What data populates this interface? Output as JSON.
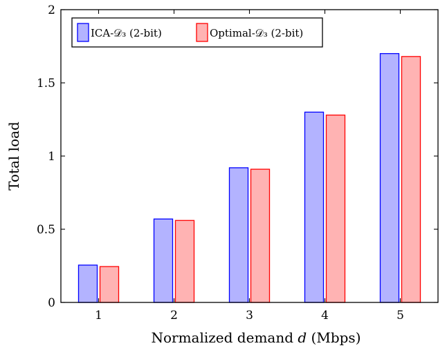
{
  "chart_data": {
    "type": "bar",
    "categories": [
      "1",
      "2",
      "3",
      "4",
      "5"
    ],
    "series": [
      {
        "name": "ICA-𝒟₃ (2-bit)",
        "values": [
          0.255,
          0.57,
          0.92,
          1.3,
          1.7
        ],
        "fill": "#b3b3ff",
        "stroke": "#0000ff"
      },
      {
        "name": "Optimal-𝒟₃ (2-bit)",
        "values": [
          0.245,
          0.56,
          0.91,
          1.28,
          1.68
        ],
        "fill": "#ffb3b3",
        "stroke": "#ff0000"
      }
    ],
    "xlabel": "Normalized demand d (Mbps)",
    "ylabel": "Total load",
    "ylim": [
      0,
      2
    ],
    "xlim": [
      0.5,
      5.5
    ],
    "yticks": [
      0,
      0.5,
      1,
      1.5,
      2
    ],
    "ytick_labels": [
      "0",
      "0.5",
      "1",
      "1.5",
      "2"
    ],
    "xtick_labels": [
      "1",
      "2",
      "3",
      "4",
      "5"
    ],
    "grid": false,
    "legend_position": "top-left"
  }
}
